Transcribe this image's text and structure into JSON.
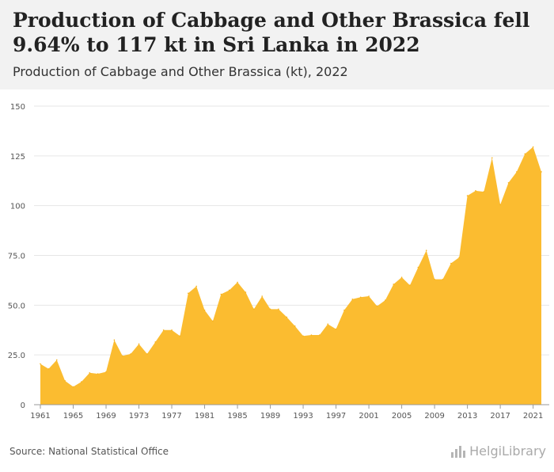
{
  "header": {
    "title": "Production of Cabbage and Other Brassica fell 9.64% to 117 kt in Sri Lanka in 2022",
    "subtitle": "Production of Cabbage and Other Brassica (kt), 2022"
  },
  "footer": {
    "source": "Source: National Statistical Office",
    "logo_text": "HelgiLibrary"
  },
  "colors": {
    "area_fill": "#FBBC30",
    "area_stroke": "#F5B21F",
    "grid": "#e6e6e6",
    "axis": "#999999"
  },
  "chart_data": {
    "type": "area",
    "title": "Production of Cabbage and Other Brassica fell 9.64% to 117 kt in Sri Lanka in 2022",
    "subtitle": "Production of Cabbage and Other Brassica (kt), 2022",
    "xlabel": "",
    "ylabel": "",
    "xlim": [
      1961,
      2022
    ],
    "ylim": [
      0,
      150
    ],
    "grid": true,
    "legend": "none",
    "yticks": [
      0,
      25.0,
      50.0,
      75.0,
      100,
      125,
      150
    ],
    "ytick_labels": [
      "0",
      "25.0",
      "50.0",
      "75.0",
      "100",
      "125",
      "150"
    ],
    "xticks": [
      1961,
      1965,
      1969,
      1973,
      1977,
      1981,
      1985,
      1989,
      1993,
      1997,
      2001,
      2005,
      2009,
      2013,
      2017,
      2021
    ],
    "x": [
      1961,
      1962,
      1963,
      1964,
      1965,
      1966,
      1967,
      1968,
      1969,
      1970,
      1971,
      1972,
      1973,
      1974,
      1975,
      1976,
      1977,
      1978,
      1979,
      1980,
      1981,
      1982,
      1983,
      1984,
      1985,
      1986,
      1987,
      1988,
      1989,
      1990,
      1991,
      1992,
      1993,
      1994,
      1995,
      1996,
      1997,
      1998,
      1999,
      2000,
      2001,
      2002,
      2003,
      2004,
      2005,
      2006,
      2007,
      2008,
      2009,
      2010,
      2011,
      2012,
      2013,
      2014,
      2015,
      2016,
      2017,
      2018,
      2019,
      2020,
      2021,
      2022
    ],
    "values": [
      20.5,
      18,
      22.5,
      12,
      9,
      11.5,
      16,
      15.5,
      16.5,
      32.5,
      24.5,
      25.5,
      30.5,
      25.5,
      31.5,
      37.5,
      37.5,
      34.5,
      56,
      59.5,
      47.5,
      42,
      55.5,
      57.5,
      61.5,
      56.5,
      48,
      54.5,
      48,
      48,
      44,
      39.5,
      34.5,
      35,
      35,
      40.5,
      38,
      47.5,
      53,
      54,
      54.5,
      49.5,
      52.5,
      60.5,
      64,
      60,
      69,
      77.5,
      63,
      63,
      71,
      74,
      105,
      107.5,
      107,
      124,
      100.5,
      111.5,
      117,
      126,
      129.5,
      117
    ]
  }
}
